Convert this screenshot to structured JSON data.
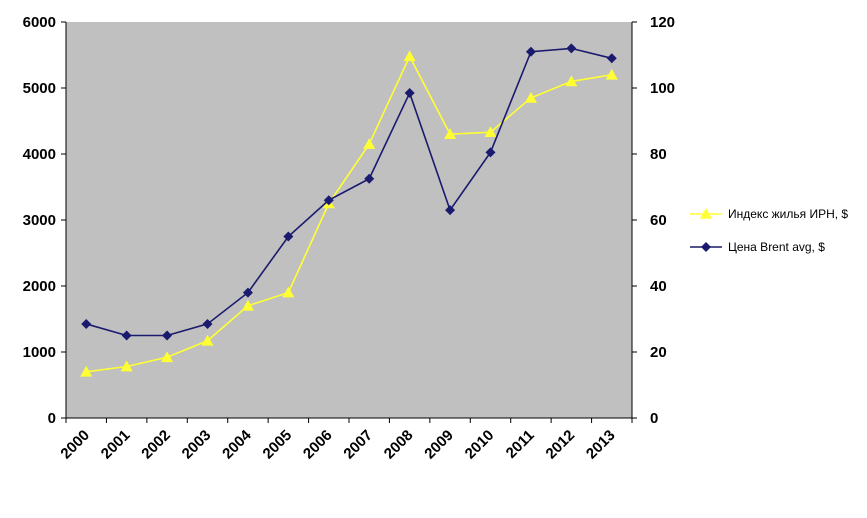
{
  "chart_data": {
    "type": "line",
    "title": "",
    "x": [
      "2000",
      "2001",
      "2002",
      "2003",
      "2004",
      "2005",
      "2006",
      "2007",
      "2008",
      "2009",
      "2010",
      "2011",
      "2012",
      "2013"
    ],
    "y_left": {
      "range": [
        0,
        6000
      ],
      "ticks": [
        "0",
        "1000",
        "2000",
        "3000",
        "4000",
        "5000",
        "6000"
      ]
    },
    "y_right": {
      "range": [
        0,
        120
      ],
      "ticks": [
        "0",
        "20",
        "40",
        "60",
        "80",
        "100",
        "120"
      ]
    },
    "plot_background": "#c0c0c0",
    "grid": false,
    "legend_position": "right",
    "series": [
      {
        "name": "Индекс жилья ИРН, $",
        "axis": "left",
        "color": "#ffff33",
        "marker": "triangle",
        "values": [
          700,
          780,
          920,
          1170,
          1700,
          1900,
          3250,
          4150,
          5480,
          4300,
          4330,
          4850,
          5100,
          5200
        ]
      },
      {
        "name": "Цена Brent avg, $",
        "axis": "right",
        "color": "#1a1a6e",
        "marker": "diamond",
        "values": [
          28.5,
          25,
          25,
          28.5,
          38,
          55,
          66,
          72.5,
          98.5,
          63,
          80.5,
          111,
          112,
          109
        ]
      }
    ]
  }
}
